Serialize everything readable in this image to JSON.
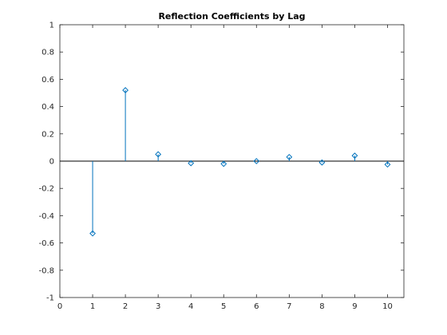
{
  "chart_data": {
    "type": "stem",
    "title": "Reflection Coefficients by Lag",
    "xlabel": "",
    "ylabel": "",
    "xlim": [
      0,
      10.5
    ],
    "ylim": [
      -1,
      1
    ],
    "x_ticks": [
      0,
      1,
      2,
      3,
      4,
      5,
      6,
      7,
      8,
      9,
      10
    ],
    "y_ticks": [
      -1,
      -0.8,
      -0.6,
      -0.4,
      -0.2,
      0,
      0.2,
      0.4,
      0.6,
      0.8,
      1
    ],
    "grid": false,
    "baseline": 0,
    "marker": "diamond",
    "color": "#0072BD",
    "x": [
      1,
      2,
      3,
      4,
      5,
      6,
      7,
      8,
      9,
      10
    ],
    "y": [
      -0.53,
      0.52,
      0.05,
      -0.015,
      -0.02,
      0.0,
      0.03,
      -0.01,
      0.04,
      -0.025
    ]
  }
}
